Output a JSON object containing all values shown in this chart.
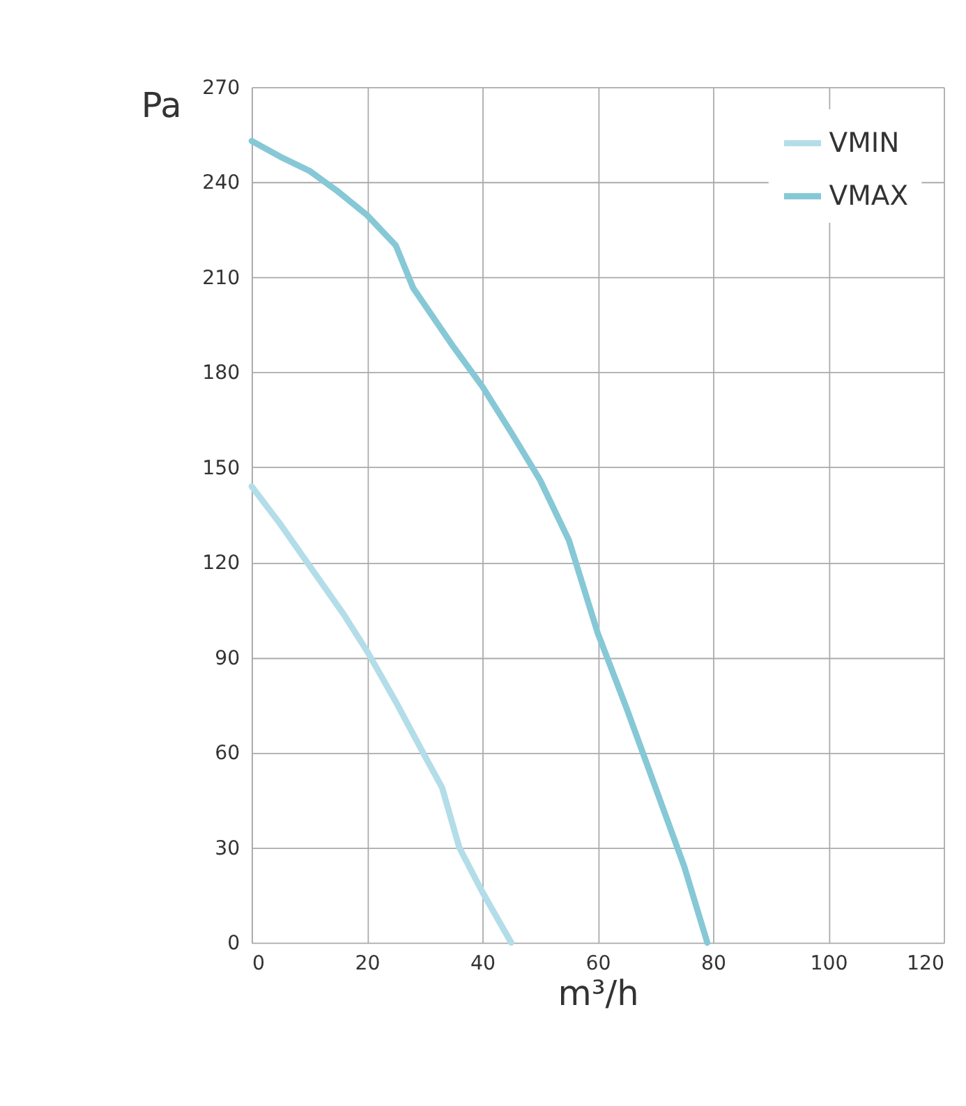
{
  "chart_data": {
    "type": "line",
    "xlabel": "m³/h",
    "ylabel": "Pa",
    "xlim": [
      0,
      120
    ],
    "xticks": [
      0,
      20,
      40,
      60,
      80,
      100,
      120
    ],
    "ylim": [
      0,
      270
    ],
    "yticks": [
      0,
      30,
      60,
      90,
      120,
      150,
      180,
      210,
      240,
      270
    ],
    "grid": true,
    "legend": "top right",
    "marker": "none",
    "line_style": "solid",
    "series": [
      {
        "name": "VMIN",
        "color": "#b3dde8",
        "x": [
          0,
          5,
          10,
          16,
          20,
          25,
          30,
          33,
          36,
          40,
          45
        ],
        "values": [
          144,
          132,
          119,
          103.5,
          92,
          76,
          59,
          49,
          30,
          16,
          0
        ]
      },
      {
        "name": "VMAX",
        "color": "#86c8d6",
        "x": [
          0,
          5,
          10,
          15,
          20,
          25,
          28,
          35,
          40,
          45,
          50,
          55,
          60,
          65,
          70,
          75,
          79
        ],
        "values": [
          253,
          248,
          243.6,
          237,
          229.6,
          220,
          206.6,
          188,
          175.5,
          161,
          146,
          127,
          97.7,
          74,
          49,
          24,
          0
        ]
      }
    ]
  }
}
